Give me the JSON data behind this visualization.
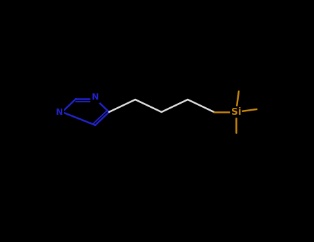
{
  "background_color": "#000000",
  "bond_color": "#2222cc",
  "chain_color": "#dddddd",
  "si_color": "#c8860a",
  "si_label": "Si",
  "n_label": "N",
  "label_color_n": "#2222cc",
  "label_color_si": "#c8860a",
  "figsize": [
    4.55,
    3.5
  ],
  "dpi": 100,
  "lw": 1.8,
  "font_size_n": 9,
  "font_size_si": 10
}
